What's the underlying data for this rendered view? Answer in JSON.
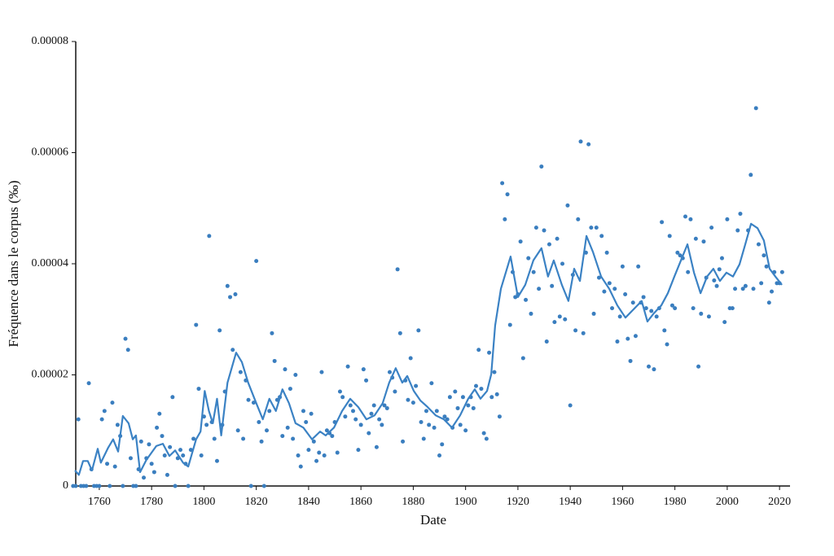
{
  "chart_data": {
    "type": "scatter",
    "x_label": "Date",
    "y_label": "Fréquence dans le corpus (‰)",
    "xlim": [
      1751,
      2024
    ],
    "ylim": [
      0,
      8e-05
    ],
    "xticks": [
      1760,
      1780,
      1800,
      1820,
      1840,
      1860,
      1880,
      1900,
      1920,
      1940,
      1960,
      1980,
      2000,
      2020
    ],
    "yticks": [
      0,
      2e-05,
      4e-05,
      6e-05,
      8e-05
    ],
    "grid": false,
    "series": [
      {
        "type": "scatter",
        "color": "#3a7ebf",
        "x": [
          1750,
          1751,
          1752,
          1753,
          1754,
          1755,
          1756,
          1757,
          1758,
          1759,
          1760,
          1761,
          1762,
          1763,
          1764,
          1765,
          1766,
          1767,
          1768,
          1769,
          1770,
          1771,
          1772,
          1773,
          1774,
          1775,
          1776,
          1777,
          1778,
          1779,
          1780,
          1781,
          1782,
          1783,
          1784,
          1785,
          1786,
          1787,
          1788,
          1789,
          1790,
          1791,
          1792,
          1793,
          1794,
          1795,
          1796,
          1797,
          1798,
          1799,
          1800,
          1801,
          1802,
          1803,
          1804,
          1805,
          1806,
          1807,
          1808,
          1809,
          1810,
          1811,
          1812,
          1813,
          1814,
          1815,
          1816,
          1817,
          1818,
          1819,
          1820,
          1821,
          1822,
          1823,
          1824,
          1825,
          1826,
          1827,
          1828,
          1829,
          1830,
          1831,
          1832,
          1833,
          1834,
          1835,
          1836,
          1837,
          1838,
          1839,
          1840,
          1841,
          1842,
          1843,
          1844,
          1845,
          1846,
          1847,
          1848,
          1849,
          1850,
          1851,
          1852,
          1853,
          1854,
          1855,
          1856,
          1857,
          1858,
          1859,
          1860,
          1861,
          1862,
          1863,
          1864,
          1865,
          1866,
          1867,
          1868,
          1869,
          1870,
          1871,
          1872,
          1873,
          1874,
          1875,
          1876,
          1877,
          1878,
          1879,
          1880,
          1881,
          1882,
          1883,
          1884,
          1885,
          1886,
          1887,
          1888,
          1889,
          1890,
          1891,
          1892,
          1893,
          1894,
          1895,
          1896,
          1897,
          1898,
          1899,
          1900,
          1901,
          1902,
          1903,
          1904,
          1905,
          1906,
          1907,
          1908,
          1909,
          1910,
          1911,
          1912,
          1913,
          1914,
          1915,
          1916,
          1917,
          1918,
          1919,
          1920,
          1921,
          1922,
          1923,
          1924,
          1925,
          1926,
          1927,
          1928,
          1929,
          1930,
          1931,
          1932,
          1933,
          1934,
          1935,
          1936,
          1937,
          1938,
          1939,
          1940,
          1941,
          1942,
          1943,
          1944,
          1945,
          1946,
          1947,
          1948,
          1949,
          1950,
          1951,
          1952,
          1953,
          1954,
          1955,
          1956,
          1957,
          1958,
          1959,
          1960,
          1961,
          1962,
          1963,
          1964,
          1965,
          1966,
          1967,
          1968,
          1969,
          1970,
          1971,
          1972,
          1973,
          1974,
          1975,
          1976,
          1977,
          1978,
          1979,
          1980,
          1981,
          1982,
          1983,
          1984,
          1985,
          1986,
          1987,
          1988,
          1989,
          1990,
          1991,
          1992,
          1993,
          1994,
          1995,
          1996,
          1997,
          1998,
          1999,
          2000,
          2001,
          2002,
          2003,
          2004,
          2005,
          2006,
          2007,
          2008,
          2009,
          2010,
          2011,
          2012,
          2013,
          2014,
          2015,
          2016,
          2017,
          2018,
          2019,
          2020,
          2021
        ],
        "values": [
          0,
          0,
          1.2e-05,
          0,
          0,
          0,
          1.85e-05,
          3e-06,
          0,
          0,
          0,
          1.2e-05,
          1.35e-05,
          4e-06,
          0,
          1.5e-05,
          3.5e-06,
          1.1e-05,
          9e-06,
          0,
          2.65e-05,
          2.45e-05,
          5e-06,
          0,
          0,
          3e-06,
          8e-06,
          1.5e-06,
          5e-06,
          7.5e-06,
          4e-06,
          2.5e-06,
          1.05e-05,
          1.3e-05,
          9e-06,
          5.5e-06,
          2e-06,
          7e-06,
          1.6e-05,
          0,
          5e-06,
          6.5e-06,
          5.5e-06,
          4e-06,
          0,
          6.5e-06,
          8.5e-06,
          2.9e-05,
          1.75e-05,
          5.5e-06,
          1.25e-05,
          1.1e-05,
          4.5e-05,
          1.15e-05,
          8.5e-06,
          4.5e-06,
          2.8e-05,
          1.1e-05,
          1.7e-05,
          3.6e-05,
          3.4e-05,
          2.45e-05,
          3.45e-05,
          1e-05,
          2.05e-05,
          8.5e-06,
          1.9e-05,
          1.55e-05,
          0,
          1.5e-05,
          4.05e-05,
          1.15e-05,
          8e-06,
          0,
          1e-05,
          1.35e-05,
          2.75e-05,
          2.25e-05,
          1.55e-05,
          1.6e-05,
          9e-06,
          2.1e-05,
          1.05e-05,
          1.75e-05,
          8.5e-06,
          2e-05,
          5.5e-06,
          3.5e-06,
          1.35e-05,
          1.15e-05,
          6.5e-06,
          1.3e-05,
          8e-06,
          4.5e-06,
          6e-06,
          2.05e-05,
          5.5e-06,
          1e-05,
          9.5e-06,
          9e-06,
          1.15e-05,
          6e-06,
          1.7e-05,
          1.6e-05,
          1.25e-05,
          2.15e-05,
          1.45e-05,
          1.35e-05,
          1.2e-05,
          6.5e-06,
          1.1e-05,
          2.1e-05,
          1.9e-05,
          9.5e-06,
          1.3e-05,
          1.45e-05,
          7e-06,
          1.2e-05,
          1.1e-05,
          1.45e-05,
          1.4e-05,
          2.05e-05,
          1.95e-05,
          1.7e-05,
          3.9e-05,
          2.75e-05,
          8e-06,
          1.9e-05,
          1.55e-05,
          2.3e-05,
          1.5e-05,
          1.8e-05,
          2.8e-05,
          1.15e-05,
          8.5e-06,
          1.35e-05,
          1.1e-05,
          1.85e-05,
          1.05e-05,
          1.35e-05,
          5.5e-06,
          7.5e-06,
          1.25e-05,
          1.2e-05,
          1.6e-05,
          1.05e-05,
          1.7e-05,
          1.4e-05,
          1.1e-05,
          1.6e-05,
          1e-05,
          1.45e-05,
          1.6e-05,
          1.4e-05,
          1.8e-05,
          2.45e-05,
          1.75e-05,
          9.5e-06,
          8.5e-06,
          2.4e-05,
          1.6e-05,
          2.05e-05,
          1.65e-05,
          1.25e-05,
          5.45e-05,
          4.8e-05,
          5.25e-05,
          2.9e-05,
          3.85e-05,
          3.4e-05,
          3.45e-05,
          4.4e-05,
          2.3e-05,
          3.35e-05,
          4.1e-05,
          3.1e-05,
          3.85e-05,
          4.65e-05,
          3.55e-05,
          5.75e-05,
          4.6e-05,
          2.6e-05,
          4.35e-05,
          3.6e-05,
          2.95e-05,
          4.45e-05,
          3.05e-05,
          4e-05,
          3e-05,
          5.05e-05,
          1.45e-05,
          3.8e-05,
          2.8e-05,
          4.8e-05,
          6.2e-05,
          2.75e-05,
          4.2e-05,
          6.15e-05,
          4.65e-05,
          3.1e-05,
          4.65e-05,
          3.75e-05,
          4.5e-05,
          3.5e-05,
          4.2e-05,
          3.65e-05,
          3.2e-05,
          3.55e-05,
          2.6e-05,
          3.05e-05,
          3.95e-05,
          3.45e-05,
          2.65e-05,
          2.25e-05,
          3.3e-05,
          2.7e-05,
          3.95e-05,
          3.3e-05,
          3.4e-05,
          3.2e-05,
          2.15e-05,
          3.15e-05,
          2.1e-05,
          3.05e-05,
          3.2e-05,
          4.75e-05,
          2.8e-05,
          2.55e-05,
          4.5e-05,
          3.25e-05,
          3.2e-05,
          4.2e-05,
          4.15e-05,
          4.1e-05,
          4.85e-05,
          3.85e-05,
          4.8e-05,
          3.2e-05,
          4.45e-05,
          2.15e-05,
          3.1e-05,
          4.4e-05,
          3.75e-05,
          3.05e-05,
          4.65e-05,
          3.7e-05,
          3.6e-05,
          3.9e-05,
          4.1e-05,
          2.95e-05,
          4.8e-05,
          3.2e-05,
          3.2e-05,
          3.55e-05,
          4.6e-05,
          4.9e-05,
          3.55e-05,
          3.6e-05,
          4.6e-05,
          5.6e-05,
          3.55e-05,
          6.8e-05,
          4.35e-05,
          3.65e-05,
          4.15e-05,
          3.95e-05,
          3.3e-05,
          3.5e-05,
          3.85e-05,
          3.65e-05,
          3.65e-05,
          3.85e-05
        ]
      },
      {
        "type": "line",
        "color": "#3b82c4",
        "x": [
          1750.7,
          1752.2,
          1753.8,
          1755.6,
          1757.2,
          1759.4,
          1760.6,
          1763.4,
          1765.3,
          1767.2,
          1769,
          1771.2,
          1772.8,
          1774,
          1775.6,
          1778,
          1781.8,
          1784.3,
          1786.8,
          1789,
          1792,
          1794,
          1797,
          1798.7,
          1800.3,
          1801.9,
          1803.4,
          1805,
          1806.6,
          1809,
          1812.3,
          1814.5,
          1816.9,
          1820,
          1822.5,
          1825,
          1827.5,
          1830,
          1832.5,
          1835,
          1838,
          1841.3,
          1844.4,
          1846.5,
          1849.7,
          1852.8,
          1855.9,
          1859,
          1862.1,
          1865.2,
          1868.3,
          1870.8,
          1873.3,
          1875.8,
          1877.7,
          1880.2,
          1882.7,
          1885.5,
          1888.6,
          1891.7,
          1894.8,
          1897.9,
          1901,
          1903.5,
          1905.7,
          1908.2,
          1909.8,
          1911.3,
          1913.5,
          1917.2,
          1920,
          1922.8,
          1925.9,
          1929,
          1931.5,
          1933.7,
          1936.8,
          1939.3,
          1941.5,
          1943.7,
          1946.2,
          1948.7,
          1951.8,
          1954.9,
          1958,
          1961.1,
          1964.2,
          1967.3,
          1969.5,
          1972,
          1974.8,
          1977.3,
          1979.8,
          1982.3,
          1984.8,
          1987.3,
          1989.8,
          1992.3,
          1994.7,
          1997.2,
          1999.7,
          2002.2,
          2004.7,
          2006.9,
          2009.1,
          2011.6,
          2014,
          2016.2,
          2018.4,
          2020.9
        ],
        "values": [
          2.8e-06,
          2e-06,
          4.5e-06,
          4.5e-06,
          2.8e-06,
          6.7e-06,
          4.2e-06,
          6.9e-06,
          8.4e-06,
          6.2e-06,
          1.26e-05,
          1.13e-05,
          8.4e-06,
          9.1e-06,
          2.5e-06,
          4.7e-06,
          7.2e-06,
          7.6e-06,
          5.4e-06,
          6.4e-06,
          4.2e-06,
          3.5e-06,
          8.4e-06,
          9.8e-06,
          1.71e-05,
          1.35e-05,
          1.13e-05,
          1.57e-05,
          9.1e-06,
          1.86e-05,
          2.4e-05,
          2.23e-05,
          1.86e-05,
          1.49e-05,
          1.2e-05,
          1.57e-05,
          1.35e-05,
          1.74e-05,
          1.49e-05,
          1.13e-05,
          1.05e-05,
          8.4e-06,
          9.8e-06,
          9.1e-06,
          1.05e-05,
          1.35e-05,
          1.57e-05,
          1.42e-05,
          1.2e-05,
          1.27e-05,
          1.49e-05,
          1.86e-05,
          2.12e-05,
          1.86e-05,
          1.98e-05,
          1.71e-05,
          1.54e-05,
          1.42e-05,
          1.27e-05,
          1.2e-05,
          1.05e-05,
          1.27e-05,
          1.57e-05,
          1.74e-05,
          1.57e-05,
          1.71e-05,
          2.01e-05,
          2.89e-05,
          3.55e-05,
          4.13e-05,
          3.4e-05,
          3.62e-05,
          4.06e-05,
          4.28e-05,
          3.77e-05,
          4.06e-05,
          3.62e-05,
          3.33e-05,
          3.91e-05,
          3.69e-05,
          4.5e-05,
          4.21e-05,
          3.77e-05,
          3.55e-05,
          3.25e-05,
          3.03e-05,
          3.18e-05,
          3.33e-05,
          2.96e-05,
          3.11e-05,
          3.25e-05,
          3.47e-05,
          3.77e-05,
          4.06e-05,
          4.35e-05,
          3.84e-05,
          3.47e-05,
          3.77e-05,
          3.91e-05,
          3.69e-05,
          3.84e-05,
          3.77e-05,
          3.99e-05,
          4.35e-05,
          4.72e-05,
          4.64e-05,
          4.42e-05,
          3.91e-05,
          3.77e-05,
          3.62e-05
        ]
      }
    ]
  }
}
